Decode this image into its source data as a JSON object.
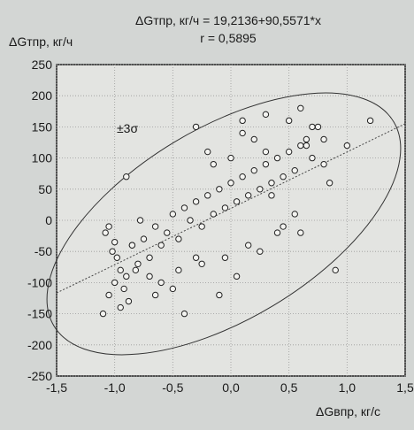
{
  "chart_data": {
    "type": "scatter",
    "title_line1": "ΔGтпр, кг/ч = 19,2136+90,5571*x",
    "title_line2": "r = 0,5895",
    "ylabel": "ΔGтпр, кг/ч",
    "xlabel": "ΔGвпр, кг/с",
    "annotation": "±3σ",
    "xlim": [
      -1.5,
      1.5
    ],
    "ylim": [
      -250,
      250
    ],
    "x_ticks": [
      "-1,5",
      "-1,0",
      "-0,5",
      "0,0",
      "0,5",
      "1,0",
      "1,5"
    ],
    "y_ticks": [
      "250",
      "200",
      "150",
      "100",
      "50",
      "0",
      "-50",
      "-100",
      "-150",
      "-200",
      "-250"
    ],
    "regression": {
      "intercept": 19.2136,
      "slope": 90.5571,
      "r": 0.5895
    },
    "grid": true,
    "point_count_approx": 900,
    "series": [
      {
        "x": [
          -1.0,
          -1.05,
          -0.95,
          -1.1,
          -0.98,
          -0.9,
          -0.85,
          -0.8,
          -0.92,
          -1.02,
          -1.08,
          -0.88,
          -0.75,
          -0.7,
          -0.65,
          -0.6,
          -0.78,
          -0.82,
          -0.95,
          -1.0,
          -0.55,
          -0.5,
          -0.45,
          -0.4,
          -0.35,
          -0.3,
          -0.25,
          -0.2,
          -0.15,
          -0.1,
          -0.05,
          0.0,
          0.05,
          0.1,
          0.15,
          0.2,
          0.25,
          0.3,
          0.35,
          0.4,
          0.45,
          0.5,
          0.55,
          0.6,
          0.65,
          0.7,
          0.75,
          0.8,
          0.85,
          1.0,
          1.2,
          -0.9,
          -0.3,
          -0.2,
          0.1,
          0.3,
          0.5,
          0.6,
          0.7,
          0.45,
          0.25,
          0.05,
          -0.1,
          -0.4,
          -0.6,
          -0.7,
          -0.5,
          -0.15,
          0.0,
          0.2,
          0.35,
          0.55,
          0.65,
          0.8,
          0.4,
          0.15,
          -0.05,
          -0.25,
          -0.45,
          -0.65,
          -0.85,
          -1.05,
          -0.3,
          0.1,
          0.3,
          0.6,
          0.9
        ],
        "y": [
          -100,
          -120,
          -80,
          -150,
          -60,
          -90,
          -40,
          -70,
          -110,
          -50,
          -20,
          -130,
          -30,
          -60,
          -10,
          -40,
          0,
          -80,
          -140,
          -35,
          -20,
          10,
          -30,
          20,
          0,
          30,
          -10,
          40,
          10,
          50,
          20,
          60,
          30,
          70,
          40,
          80,
          50,
          90,
          60,
          100,
          70,
          110,
          80,
          120,
          130,
          100,
          150,
          90,
          60,
          120,
          160,
          70,
          -60,
          110,
          140,
          170,
          160,
          180,
          150,
          -10,
          -50,
          -90,
          -120,
          -150,
          -100,
          -90,
          -110,
          90,
          100,
          130,
          40,
          10,
          120,
          130,
          -20,
          -40,
          -60,
          -70,
          -80,
          -120,
          -40,
          -10,
          150,
          160,
          110,
          -20,
          -80
        ]
      }
    ]
  }
}
